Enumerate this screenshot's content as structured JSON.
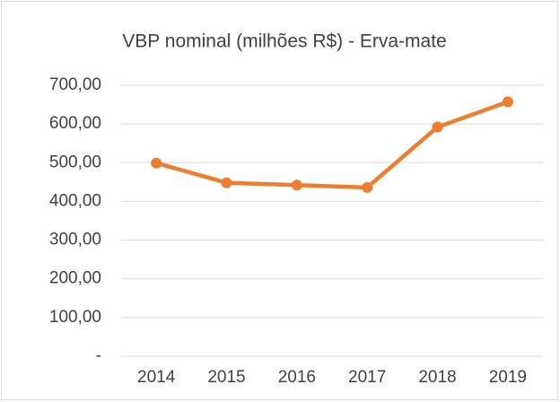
{
  "chart_data": {
    "type": "line",
    "title": "VBP nominal (milhões R$) - Erva-mate",
    "categories": [
      "2014",
      "2015",
      "2016",
      "2017",
      "2018",
      "2019"
    ],
    "values": [
      499,
      448,
      442,
      436,
      592,
      657
    ],
    "color": "#ed7d31",
    "ylim": [
      0,
      700
    ],
    "yticks": [
      {
        "value": 0,
        "label": "-"
      },
      {
        "value": 100,
        "label": "100,00"
      },
      {
        "value": 200,
        "label": "200,00"
      },
      {
        "value": 300,
        "label": "300,00"
      },
      {
        "value": 400,
        "label": "400,00"
      },
      {
        "value": 500,
        "label": "500,00"
      },
      {
        "value": 600,
        "label": "600,00"
      },
      {
        "value": 700,
        "label": "700,00"
      }
    ],
    "grid": true
  }
}
